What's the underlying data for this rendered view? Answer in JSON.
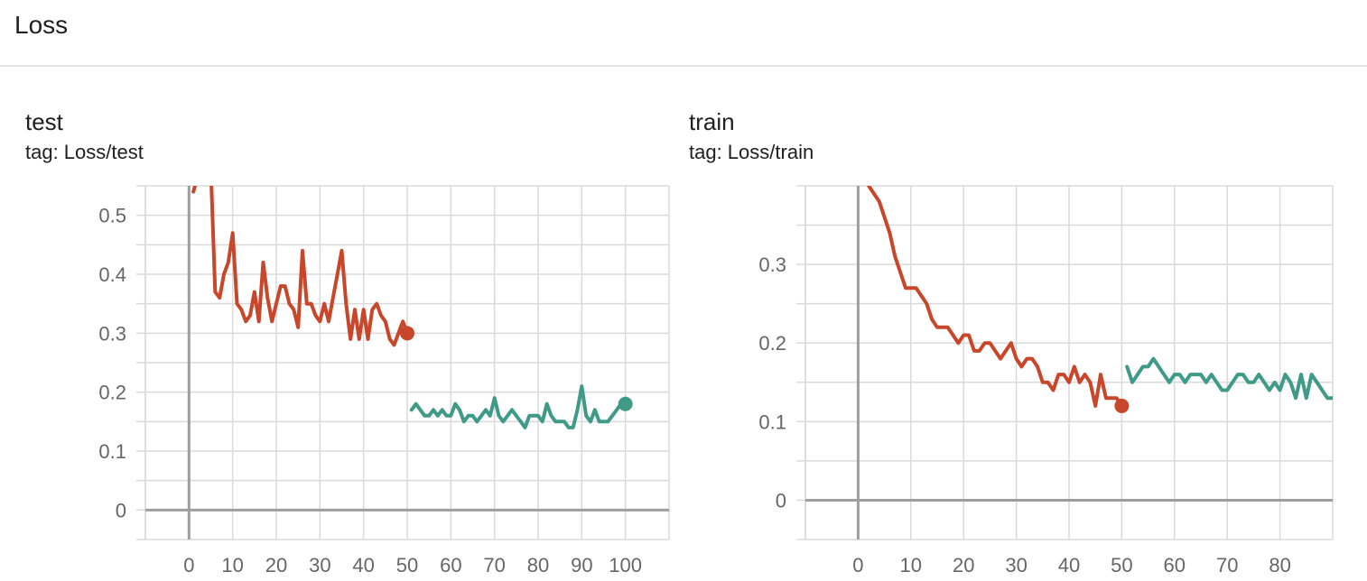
{
  "section": {
    "title": "Loss"
  },
  "cards": [
    {
      "title": "test",
      "tag": "tag: Loss/test"
    },
    {
      "title": "train",
      "tag": "tag: Loss/train"
    }
  ],
  "colors": {
    "run1": "#c8462a",
    "run2": "#3f9a88",
    "grid": "#dadada",
    "axis": "#9e9e9e",
    "tick_text": "#666666"
  },
  "chart_data": [
    {
      "type": "line",
      "title": "test",
      "subtitle": "tag: Loss/test",
      "xlim": [
        -10,
        110
      ],
      "ylim": [
        -0.05,
        0.55
      ],
      "x_ticks": [
        0,
        10,
        20,
        30,
        40,
        50,
        60,
        70,
        80,
        90,
        100
      ],
      "y_ticks": [
        0,
        0.1,
        0.2,
        0.3,
        0.4,
        0.5
      ],
      "y_tick_labels": [
        "0",
        "0.1",
        "0.2",
        "0.3",
        "0.4",
        "0.5"
      ],
      "grid": true,
      "series": [
        {
          "color": "#c8462a",
          "x": [
            1,
            4,
            5,
            6,
            7,
            8,
            9,
            10,
            11,
            12,
            13,
            14,
            15,
            16,
            17,
            18,
            19,
            20,
            21,
            22,
            23,
            24,
            25,
            26,
            27,
            28,
            29,
            30,
            31,
            32,
            33,
            34,
            35,
            36,
            37,
            38,
            39,
            40,
            41,
            42,
            43,
            44,
            45,
            46,
            47,
            48,
            49,
            50
          ],
          "y": [
            0.54,
            0.62,
            0.58,
            0.37,
            0.36,
            0.4,
            0.42,
            0.47,
            0.35,
            0.34,
            0.32,
            0.33,
            0.37,
            0.32,
            0.42,
            0.36,
            0.32,
            0.35,
            0.38,
            0.38,
            0.35,
            0.34,
            0.31,
            0.44,
            0.35,
            0.35,
            0.33,
            0.32,
            0.35,
            0.32,
            0.36,
            0.4,
            0.44,
            0.35,
            0.29,
            0.34,
            0.29,
            0.34,
            0.29,
            0.34,
            0.35,
            0.33,
            0.32,
            0.29,
            0.28,
            0.3,
            0.32,
            0.3
          ],
          "end_marker": true
        },
        {
          "color": "#3f9a88",
          "x": [
            51,
            52,
            53,
            54,
            55,
            56,
            57,
            58,
            59,
            60,
            61,
            62,
            63,
            64,
            65,
            66,
            67,
            68,
            69,
            70,
            71,
            72,
            73,
            74,
            75,
            76,
            77,
            78,
            79,
            80,
            81,
            82,
            83,
            84,
            85,
            86,
            87,
            88,
            89,
            90,
            91,
            92,
            93,
            94,
            95,
            96,
            97,
            98,
            99,
            100
          ],
          "y": [
            0.17,
            0.18,
            0.17,
            0.16,
            0.16,
            0.17,
            0.16,
            0.17,
            0.16,
            0.16,
            0.18,
            0.17,
            0.15,
            0.16,
            0.16,
            0.15,
            0.16,
            0.17,
            0.16,
            0.19,
            0.16,
            0.15,
            0.16,
            0.17,
            0.16,
            0.15,
            0.14,
            0.16,
            0.16,
            0.16,
            0.15,
            0.18,
            0.16,
            0.15,
            0.15,
            0.15,
            0.14,
            0.14,
            0.17,
            0.21,
            0.16,
            0.15,
            0.17,
            0.15,
            0.15,
            0.15,
            0.16,
            0.17,
            0.18,
            0.18
          ],
          "end_marker": true
        }
      ]
    },
    {
      "type": "line",
      "title": "train",
      "subtitle": "tag: Loss/train",
      "xlim": [
        -10,
        90
      ],
      "ylim": [
        -0.05,
        0.4
      ],
      "x_ticks": [
        0,
        10,
        20,
        30,
        40,
        50,
        60,
        70,
        80
      ],
      "y_ticks": [
        0,
        0.1,
        0.2,
        0.3
      ],
      "y_tick_labels": [
        "0",
        "0.1",
        "0.2",
        "0.3"
      ],
      "grid": true,
      "series": [
        {
          "color": "#c8462a",
          "x": [
            2,
            4,
            5,
            6,
            7,
            8,
            9,
            10,
            11,
            12,
            13,
            14,
            15,
            16,
            17,
            18,
            19,
            20,
            21,
            22,
            23,
            24,
            25,
            26,
            27,
            28,
            29,
            30,
            31,
            32,
            33,
            34,
            35,
            36,
            37,
            38,
            39,
            40,
            41,
            42,
            43,
            44,
            45,
            46,
            47,
            48,
            49,
            50
          ],
          "y": [
            0.4,
            0.38,
            0.36,
            0.34,
            0.31,
            0.29,
            0.27,
            0.27,
            0.27,
            0.26,
            0.25,
            0.23,
            0.22,
            0.22,
            0.22,
            0.21,
            0.2,
            0.21,
            0.21,
            0.19,
            0.19,
            0.2,
            0.2,
            0.19,
            0.18,
            0.19,
            0.2,
            0.18,
            0.17,
            0.18,
            0.18,
            0.17,
            0.15,
            0.15,
            0.14,
            0.16,
            0.16,
            0.15,
            0.17,
            0.15,
            0.16,
            0.15,
            0.12,
            0.16,
            0.13,
            0.13,
            0.13,
            0.12
          ],
          "end_marker": true
        },
        {
          "color": "#3f9a88",
          "x": [
            51,
            52,
            53,
            54,
            55,
            56,
            57,
            58,
            59,
            60,
            61,
            62,
            63,
            64,
            65,
            66,
            67,
            68,
            69,
            70,
            71,
            72,
            73,
            74,
            75,
            76,
            77,
            78,
            79,
            80,
            81,
            82,
            83,
            84,
            85,
            86,
            87,
            88,
            89,
            90
          ],
          "y": [
            0.17,
            0.15,
            0.16,
            0.17,
            0.17,
            0.18,
            0.17,
            0.16,
            0.15,
            0.16,
            0.16,
            0.15,
            0.16,
            0.16,
            0.16,
            0.15,
            0.16,
            0.15,
            0.14,
            0.14,
            0.15,
            0.16,
            0.16,
            0.15,
            0.15,
            0.16,
            0.15,
            0.14,
            0.15,
            0.14,
            0.16,
            0.15,
            0.13,
            0.16,
            0.13,
            0.16,
            0.15,
            0.14,
            0.13,
            0.13
          ],
          "end_marker": false
        }
      ]
    }
  ]
}
